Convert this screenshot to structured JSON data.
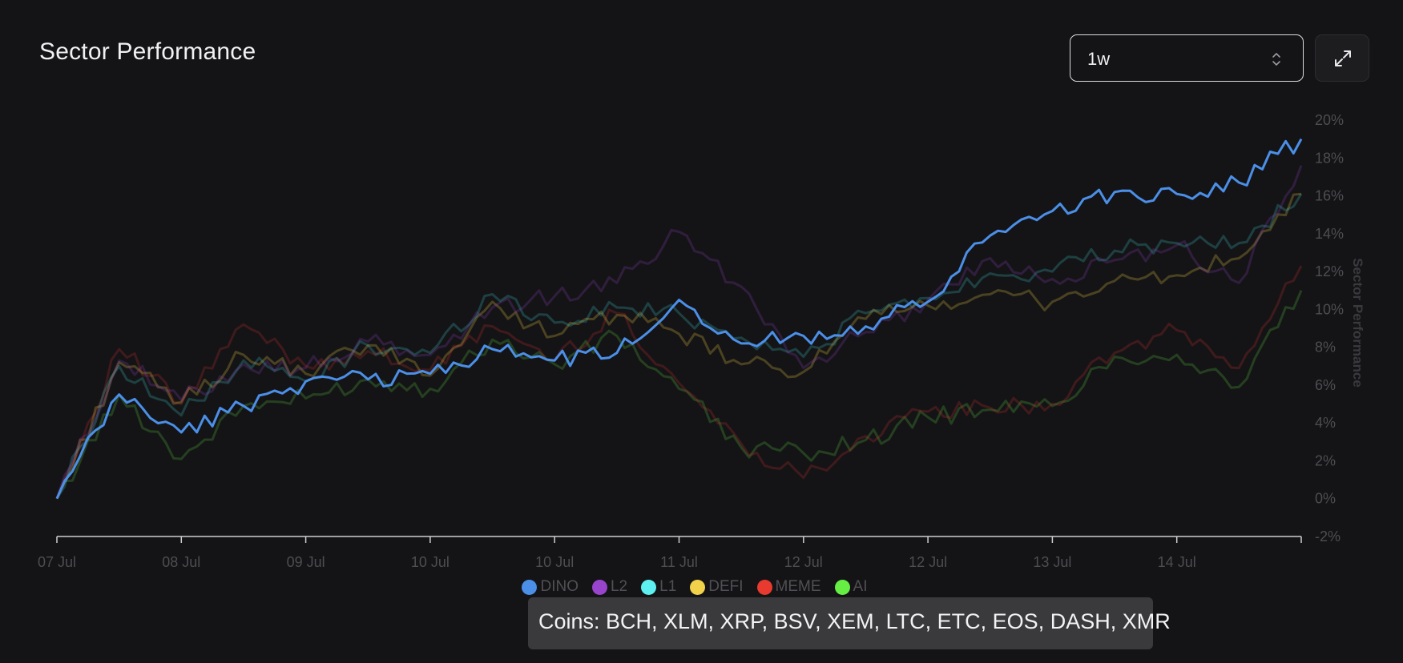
{
  "header": {
    "title": "Sector Performance",
    "range_value": "1w"
  },
  "icons": {
    "select": "chevron-up-down-icon",
    "expand": "expand-icon"
  },
  "tooltip": {
    "text": "Coins: BCH, XLM, XRP, BSV, XEM, LTC, ETC, EOS, DASH, XMR"
  },
  "chart_data": {
    "type": "line",
    "title": "Sector Performance",
    "ylabel": "Sector Performance",
    "xlabel": "",
    "ylim": [
      -2,
      20
    ],
    "y_ticks": [
      "20%",
      "18%",
      "16%",
      "14%",
      "12%",
      "10%",
      "8%",
      "6%",
      "4%",
      "2%",
      "0%",
      "-2%"
    ],
    "x_ticks": [
      "07 Jul",
      "08 Jul",
      "09 Jul",
      "10 Jul",
      "10 Jul",
      "11 Jul",
      "12 Jul",
      "12 Jul",
      "13 Jul",
      "14 Jul"
    ],
    "legend_position": "bottom",
    "grid": false,
    "x": [
      0,
      0.5,
      1,
      1.5,
      2,
      2.5,
      3,
      3.5,
      4,
      4.5,
      5,
      5.5,
      6,
      6.5,
      7,
      7.5,
      8,
      8.5,
      9,
      9.5,
      10
    ],
    "series": [
      {
        "name": "AI",
        "color": "#66dd44",
        "opacity": 0.22,
        "values": [
          0.0,
          5.5,
          2.1,
          4.9,
          5.3,
          6.3,
          5.8,
          8.4,
          7.1,
          8.6,
          5.8,
          2.7,
          2.4,
          3.1,
          4.3,
          4.7,
          4.9,
          7.5,
          7.6,
          5.9,
          11.0
        ]
      },
      {
        "name": "MEME",
        "color": "#dd3333",
        "opacity": 0.22,
        "values": [
          0.0,
          7.9,
          5.0,
          9.2,
          7.0,
          7.8,
          6.8,
          9.1,
          7.3,
          9.8,
          6.1,
          2.9,
          1.1,
          3.3,
          4.6,
          4.8,
          5.0,
          7.7,
          8.9,
          6.9,
          12.3
        ]
      },
      {
        "name": "DEFI",
        "color": "#eecc44",
        "opacity": 0.25,
        "values": [
          0.0,
          7.2,
          5.1,
          7.6,
          6.6,
          8.1,
          6.5,
          10.4,
          8.6,
          9.7,
          8.7,
          7.1,
          6.7,
          9.5,
          10.2,
          10.8,
          10.4,
          11.5,
          11.8,
          12.7,
          16.1
        ]
      },
      {
        "name": "L1",
        "color": "#44dddd",
        "opacity": 0.22,
        "values": [
          0.0,
          7.0,
          4.4,
          7.3,
          6.2,
          8.1,
          7.7,
          10.8,
          9.3,
          10.1,
          9.8,
          8.5,
          7.5,
          9.8,
          10.6,
          11.9,
          12.0,
          13.1,
          13.5,
          13.5,
          16.1
        ]
      },
      {
        "name": "L2",
        "color": "#9944cc",
        "opacity": 0.22,
        "values": [
          0.0,
          7.3,
          5.2,
          7.1,
          6.9,
          8.3,
          7.6,
          10.1,
          10.7,
          11.4,
          14.1,
          11.2,
          6.9,
          8.8,
          10.5,
          12.7,
          11.6,
          12.6,
          13.4,
          11.4,
          17.6
        ]
      },
      {
        "name": "DINO",
        "color": "#4b8fe8",
        "opacity": 1.0,
        "values": [
          0.0,
          5.5,
          3.5,
          4.9,
          6.2,
          6.3,
          6.6,
          7.9,
          7.3,
          7.7,
          10.5,
          8.2,
          8.6,
          9.1,
          10.4,
          13.9,
          15.2,
          16.2,
          16.1,
          16.7,
          19.0
        ]
      }
    ],
    "legend": [
      "DINO",
      "L2",
      "L1",
      "DEFI",
      "MEME",
      "AI"
    ],
    "legend_colors": [
      "#4b8fe8",
      "#9944cc",
      "#5ef0f0",
      "#f2d24a",
      "#e83a2e",
      "#66ee44"
    ]
  }
}
